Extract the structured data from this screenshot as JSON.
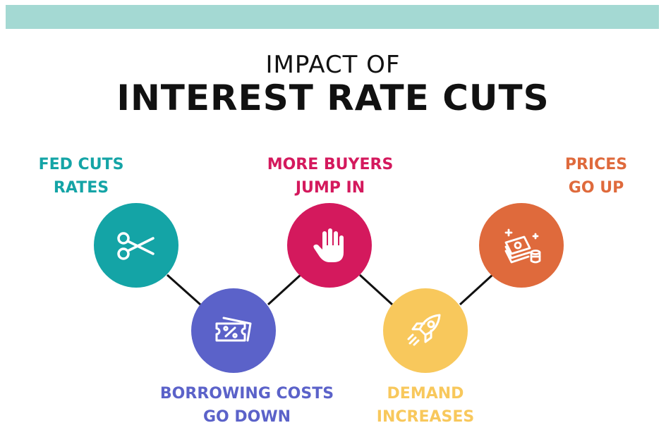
{
  "header": {
    "title_line1": "IMPACT OF",
    "title_line2": "INTEREST RATE CUTS"
  },
  "colors": {
    "band": "#a4d9d3",
    "teal": "#14a4a6",
    "purple": "#5b62c9",
    "crimson": "#d4195d",
    "yellow": "#f8c85c",
    "orange": "#df6a3c",
    "connector": "#111111"
  },
  "steps": [
    {
      "line1": "FED CUTS",
      "line2": "RATES",
      "color": "#14a4a6",
      "icon": "scissors-icon"
    },
    {
      "line1": "BORROWING COSTS",
      "line2": "GO DOWN",
      "color": "#5b62c9",
      "icon": "percent-ticket-icon"
    },
    {
      "line1": "MORE BUYERS",
      "line2": "JUMP IN",
      "color": "#d4195d",
      "icon": "raised-hand-icon"
    },
    {
      "line1": "DEMAND",
      "line2": "INCREASES",
      "color": "#f8c85c",
      "icon": "rocket-icon"
    },
    {
      "line1": "PRICES",
      "line2": "GO UP",
      "color": "#df6a3c",
      "icon": "money-stack-icon"
    }
  ]
}
